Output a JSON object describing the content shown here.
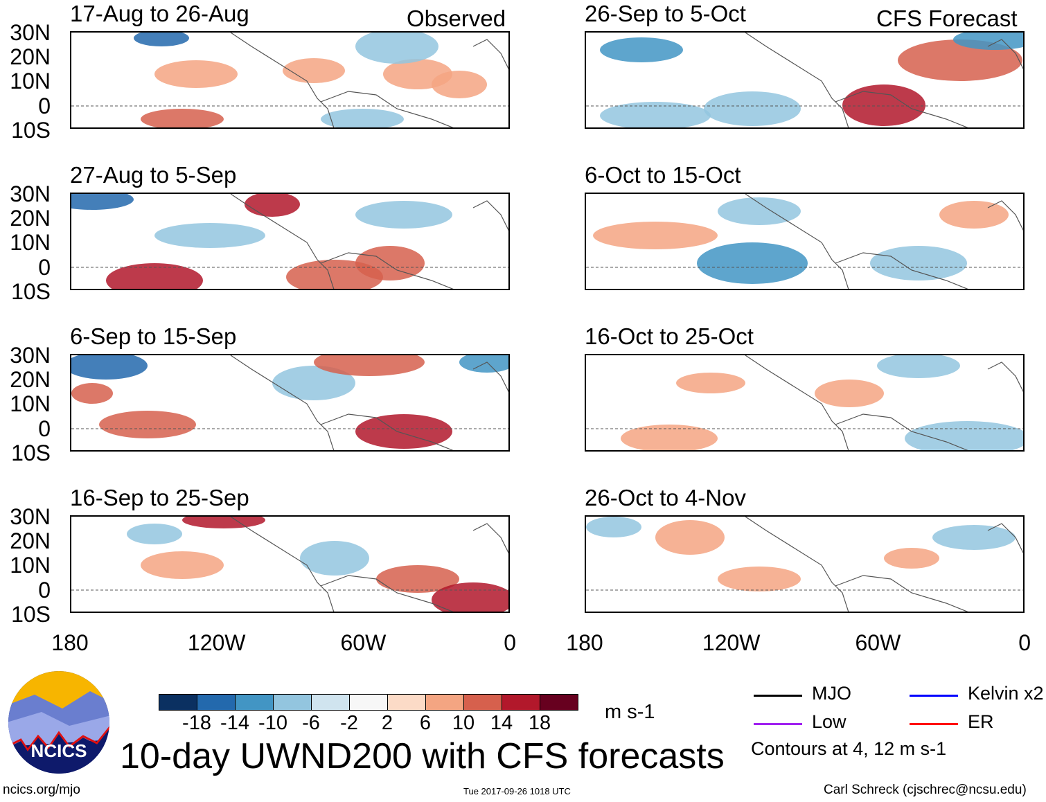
{
  "headers": {
    "observed": "Observed",
    "forecast": "CFS Forecast"
  },
  "panels": {
    "observed": [
      {
        "title": "17-Aug to 26-Aug"
      },
      {
        "title": "27-Aug to 5-Sep"
      },
      {
        "title": "6-Sep to 15-Sep"
      },
      {
        "title": "16-Sep to 25-Sep"
      }
    ],
    "forecast": [
      {
        "title": "26-Sep to 5-Oct"
      },
      {
        "title": "6-Oct to 15-Oct"
      },
      {
        "title": "16-Oct to 25-Oct"
      },
      {
        "title": "26-Oct to 4-Nov"
      }
    ]
  },
  "lat_labels": [
    "30N",
    "20N",
    "10N",
    "0",
    "10S"
  ],
  "lon_labels": [
    "180",
    "120W",
    "60W",
    "0"
  ],
  "colorbar": {
    "colors": [
      "#0b3061",
      "#2369ad",
      "#4295c4",
      "#93c5df",
      "#d0e4ef",
      "#f7f7f7",
      "#fcdbc7",
      "#f4a582",
      "#d6604d",
      "#b2182b",
      "#67001f"
    ],
    "ticks": [
      "-18",
      "-14",
      "-10",
      "-6",
      "-2",
      "2",
      "6",
      "10",
      "14",
      "18"
    ],
    "units": "m s-1"
  },
  "legend": {
    "items": [
      {
        "label": "MJO",
        "color": "#000000"
      },
      {
        "label": "Kelvin x2",
        "color": "#0000ff"
      },
      {
        "label": "Low",
        "color": "#a020f0"
      },
      {
        "label": "ER",
        "color": "#ff0000"
      }
    ],
    "note": "Contours at 4, 12 m s-1"
  },
  "logo_text": "NCICS",
  "title": "10-day UWND200 with CFS forecasts",
  "footer": {
    "url": "ncics.org/mjo",
    "timestamp": "Tue 2017-09-26 1018 UTC",
    "credit": "Carl Schreck (cjschrec@ncsu.edu)"
  }
}
